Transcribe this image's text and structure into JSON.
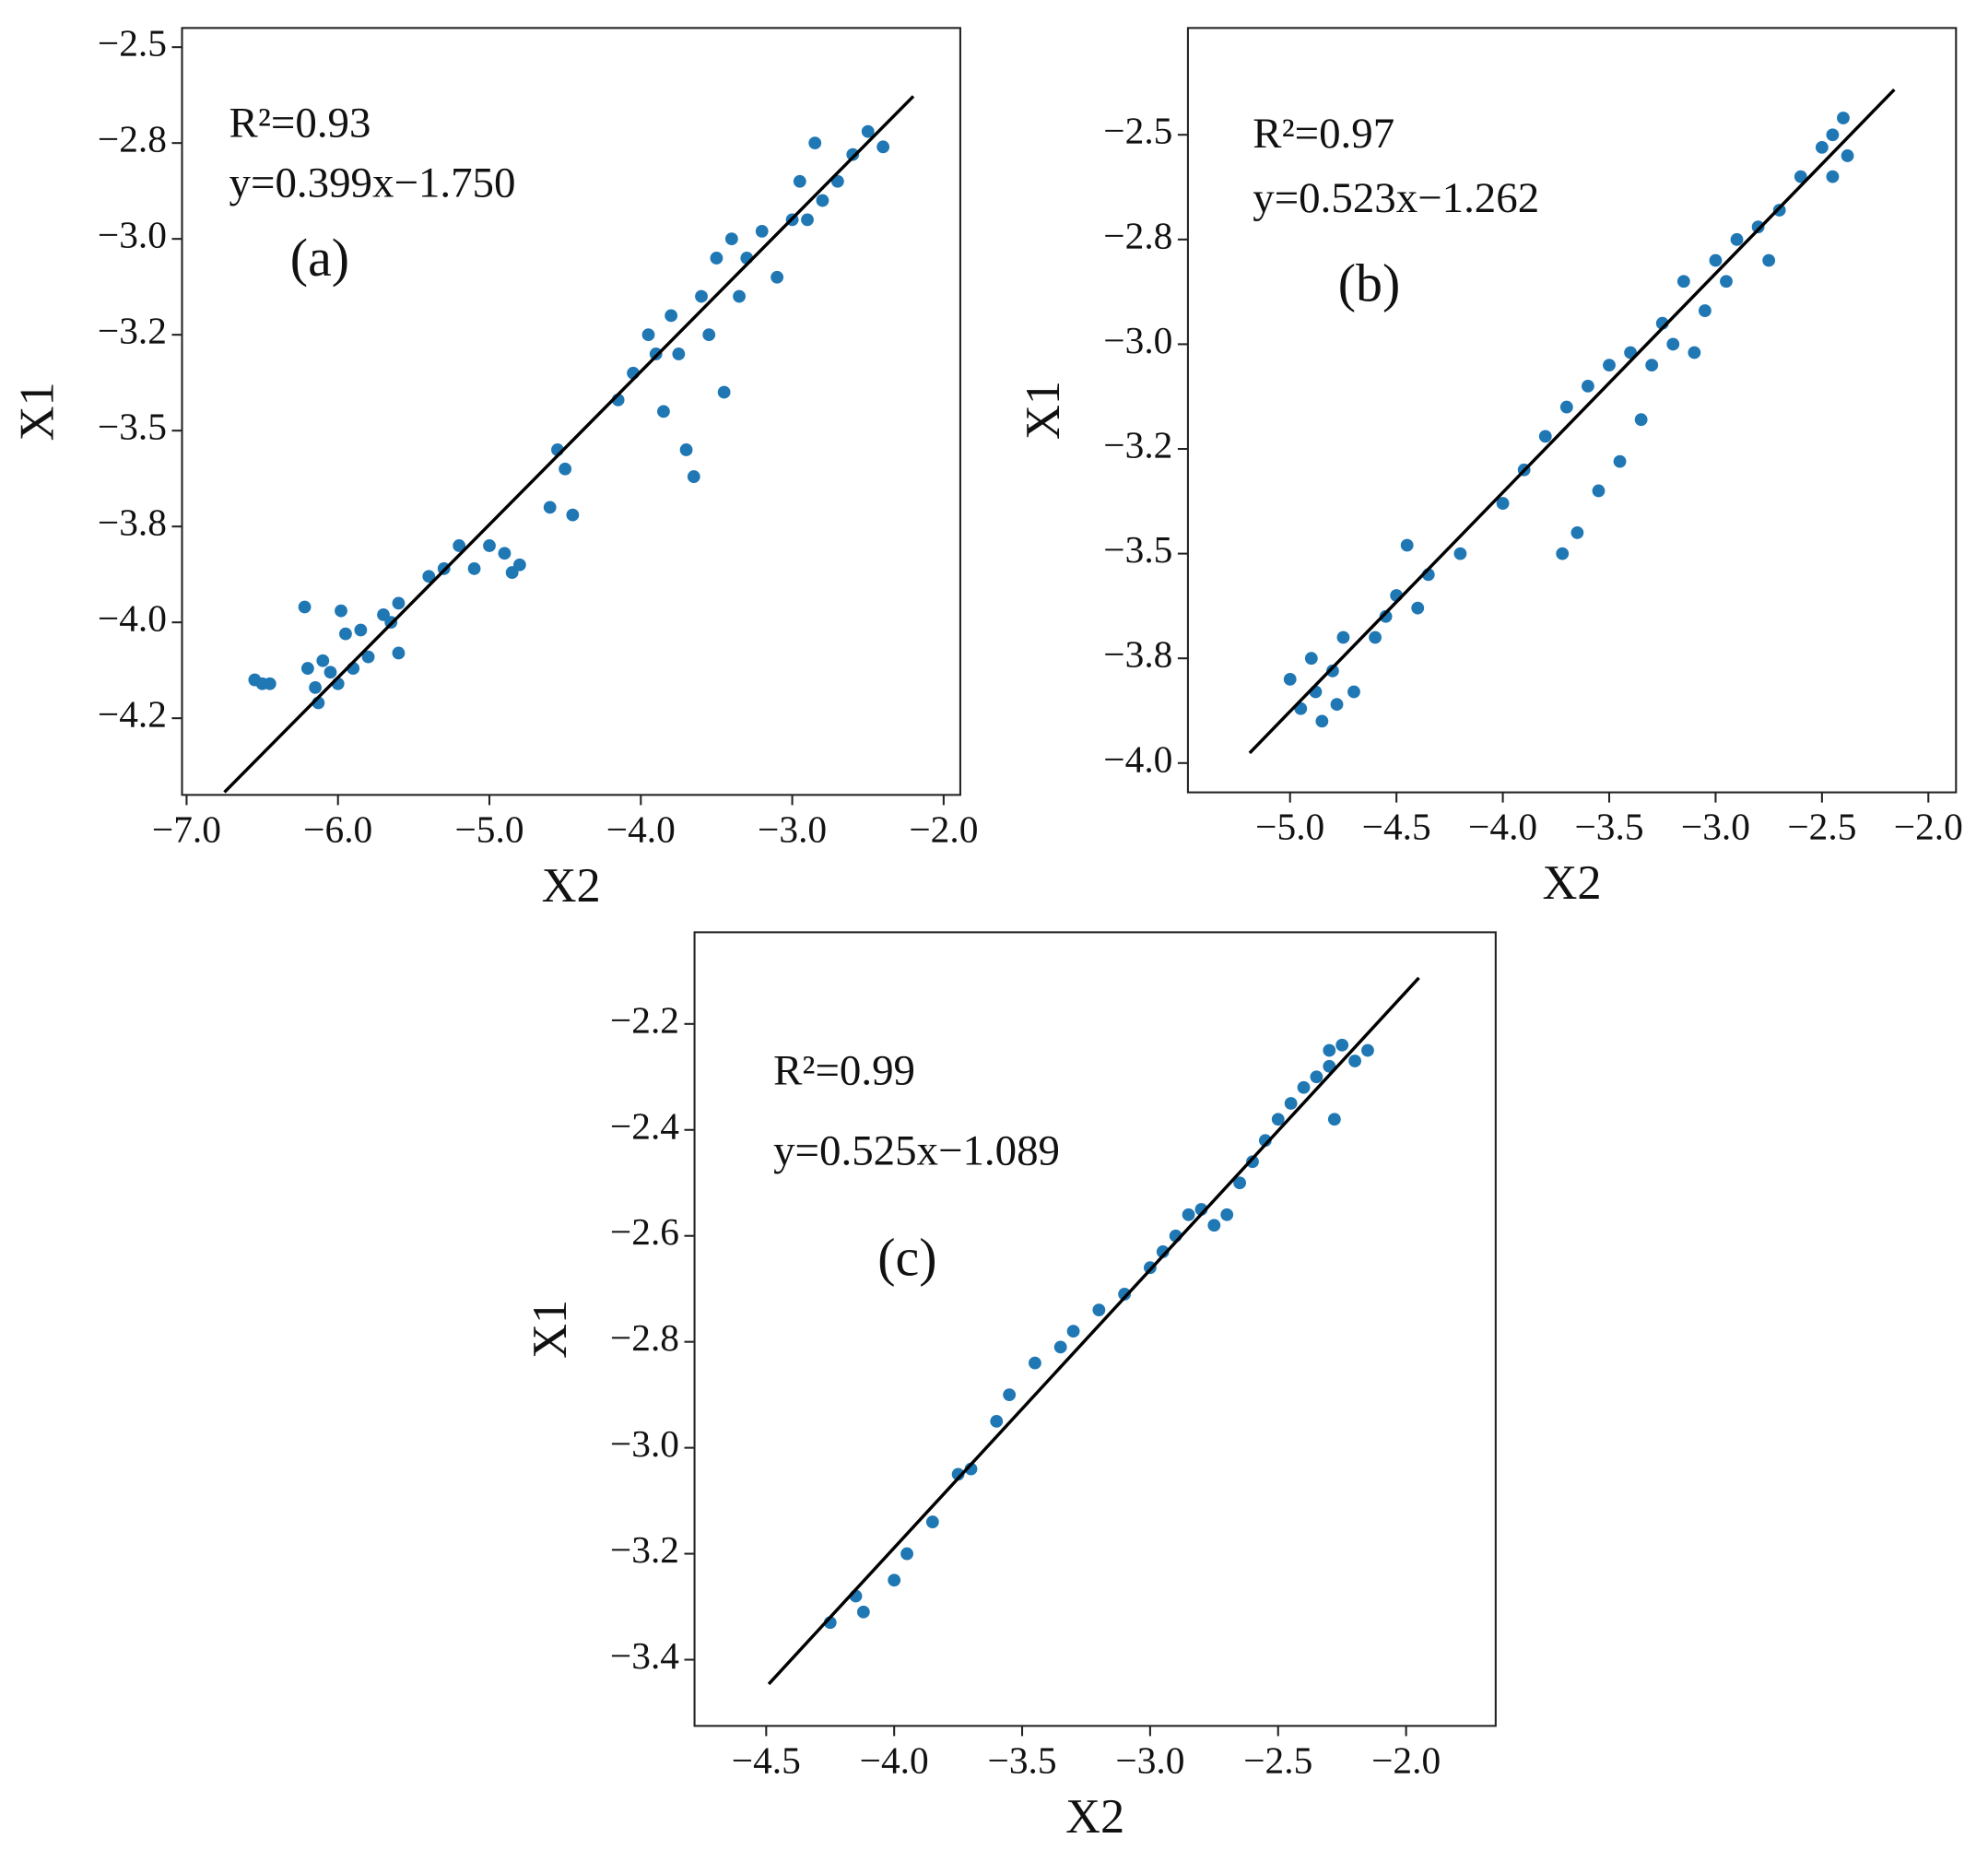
{
  "chart_data": [
    {
      "type": "scatter",
      "color": "#1f77b4",
      "fit_color": "#000000",
      "annotations": [
        "R²=0.93",
        "y=0.399x−1.750",
        "(a)"
      ],
      "x_label": "X2",
      "y_label": "X1",
      "xlim": [
        -7.03,
        -1.89
      ],
      "ylim": [
        -4.45,
        -2.45
      ],
      "xticks": [
        {
          "value": -7,
          "label": "−7.0"
        },
        {
          "value": -6,
          "label": "−6.0"
        },
        {
          "value": -5,
          "label": "−5.0"
        },
        {
          "value": -4,
          "label": "−4.0"
        },
        {
          "value": -3,
          "label": "−3.0"
        },
        {
          "value": -2,
          "label": "−2.0"
        }
      ],
      "yticks": [
        {
          "value": -2.5,
          "label": "−2.5"
        },
        {
          "value": -2.75,
          "label": "−2.8"
        },
        {
          "value": -3.0,
          "label": "−3.0"
        },
        {
          "value": -3.25,
          "label": "−3.2"
        },
        {
          "value": -3.5,
          "label": "−3.5"
        },
        {
          "value": -3.75,
          "label": "−3.8"
        },
        {
          "value": -4.0,
          "label": "−4.0"
        },
        {
          "value": -4.25,
          "label": "−4.2"
        }
      ],
      "x": [
        -6.55,
        -6.5,
        -6.45,
        -6.22,
        -6.2,
        -6.15,
        -6.13,
        -6.1,
        -6.05,
        -6.0,
        -5.98,
        -5.95,
        -5.9,
        -5.85,
        -5.8,
        -5.7,
        -5.65,
        -5.6,
        -5.6,
        -5.4,
        -5.3,
        -5.2,
        -5.1,
        -5.0,
        -4.9,
        -4.85,
        -4.8,
        -4.6,
        -4.55,
        -4.5,
        -4.45,
        -4.15,
        -4.05,
        -3.95,
        -3.9,
        -3.85,
        -3.8,
        -3.75,
        -3.7,
        -3.65,
        -3.6,
        -3.55,
        -3.5,
        -3.45,
        -3.4,
        -3.35,
        -3.3,
        -3.2,
        -3.1,
        -3.0,
        -2.95,
        -2.9,
        -2.85,
        -2.8,
        -2.7,
        -2.6,
        -2.5,
        -2.4
      ],
      "values": [
        -4.15,
        -4.16,
        -4.16,
        -3.96,
        -4.12,
        -4.17,
        -4.21,
        -4.1,
        -4.13,
        -4.16,
        -3.97,
        -4.03,
        -4.12,
        -4.02,
        -4.09,
        -3.98,
        -4.0,
        -3.95,
        -4.08,
        -3.88,
        -3.86,
        -3.8,
        -3.86,
        -3.8,
        -3.82,
        -3.87,
        -3.85,
        -3.7,
        -3.55,
        -3.6,
        -3.72,
        -3.42,
        -3.35,
        -3.25,
        -3.3,
        -3.45,
        -3.2,
        -3.3,
        -3.55,
        -3.62,
        -3.15,
        -3.25,
        -3.05,
        -3.4,
        -3.0,
        -3.15,
        -3.05,
        -2.98,
        -3.1,
        -2.95,
        -2.85,
        -2.95,
        -2.75,
        -2.9,
        -2.85,
        -2.78,
        -2.72,
        -2.76
      ],
      "fit_line": {
        "x": [
          -6.75,
          -2.2
        ],
        "y": [
          -4.443,
          -2.628
        ]
      }
    },
    {
      "type": "scatter",
      "color": "#1f77b4",
      "fit_color": "#000000",
      "annotations": [
        "R²=0.97",
        "y=0.523x−1.262",
        "(b)"
      ],
      "x_label": "X2",
      "y_label": "X1",
      "xlim": [
        -5.48,
        -1.87
      ],
      "ylim": [
        -4.07,
        -2.245
      ],
      "xticks": [
        {
          "value": -5,
          "label": "−5.0"
        },
        {
          "value": -4.5,
          "label": "−4.5"
        },
        {
          "value": -4,
          "label": "−4.0"
        },
        {
          "value": -3.5,
          "label": "−3.5"
        },
        {
          "value": -3,
          "label": "−3.0"
        },
        {
          "value": -2.5,
          "label": "−2.5"
        },
        {
          "value": -2,
          "label": "−2.0"
        }
      ],
      "yticks": [
        {
          "value": -2.5,
          "label": "−2.5"
        },
        {
          "value": -2.75,
          "label": "−2.8"
        },
        {
          "value": -3.0,
          "label": "−3.0"
        },
        {
          "value": -3.25,
          "label": "−3.2"
        },
        {
          "value": -3.5,
          "label": "−3.5"
        },
        {
          "value": -3.75,
          "label": "−3.8"
        },
        {
          "value": -4.0,
          "label": "−4.0"
        }
      ],
      "x": [
        -5.0,
        -4.95,
        -4.9,
        -4.88,
        -4.85,
        -4.8,
        -4.78,
        -4.75,
        -4.7,
        -4.6,
        -4.55,
        -4.5,
        -4.45,
        -4.4,
        -4.35,
        -4.2,
        -4.0,
        -3.9,
        -3.8,
        -3.7,
        -3.72,
        -3.65,
        -3.6,
        -3.55,
        -3.5,
        -3.45,
        -3.4,
        -3.35,
        -3.3,
        -3.25,
        -3.2,
        -3.15,
        -3.1,
        -3.05,
        -3.0,
        -2.95,
        -2.9,
        -2.8,
        -2.75,
        -2.7,
        -2.6,
        -2.5,
        -2.45,
        -2.4,
        -2.38,
        -2.45
      ],
      "values": [
        -3.8,
        -3.87,
        -3.75,
        -3.83,
        -3.9,
        -3.78,
        -3.86,
        -3.7,
        -3.83,
        -3.7,
        -3.65,
        -3.6,
        -3.48,
        -3.63,
        -3.55,
        -3.5,
        -3.38,
        -3.3,
        -3.22,
        -3.15,
        -3.5,
        -3.45,
        -3.1,
        -3.35,
        -3.05,
        -3.28,
        -3.02,
        -3.18,
        -3.05,
        -2.95,
        -3.0,
        -2.85,
        -3.02,
        -2.92,
        -2.8,
        -2.85,
        -2.75,
        -2.72,
        -2.8,
        -2.68,
        -2.6,
        -2.53,
        -2.5,
        -2.46,
        -2.55,
        -2.6
      ],
      "fit_line": {
        "x": [
          -5.19,
          -2.16
        ],
        "y": [
          -3.976,
          -2.392
        ]
      }
    },
    {
      "type": "scatter",
      "color": "#1f77b4",
      "fit_color": "#000000",
      "annotations": [
        "R²=0.99",
        "y=0.525x−1.089",
        "(c)"
      ],
      "x_label": "X2",
      "y_label": "X1",
      "xlim": [
        -4.78,
        -1.65
      ],
      "ylim": [
        -3.525,
        -2.027
      ],
      "xticks": [
        {
          "value": -4.5,
          "label": "−4.5"
        },
        {
          "value": -4,
          "label": "−4.0"
        },
        {
          "value": -3.5,
          "label": "−3.5"
        },
        {
          "value": -3,
          "label": "−3.0"
        },
        {
          "value": -2.5,
          "label": "−2.5"
        },
        {
          "value": -2,
          "label": "−2.0"
        }
      ],
      "yticks": [
        {
          "value": -2.2,
          "label": "−2.2"
        },
        {
          "value": -2.4,
          "label": "−2.4"
        },
        {
          "value": -2.6,
          "label": "−2.6"
        },
        {
          "value": -2.8,
          "label": "−2.8"
        },
        {
          "value": -3.0,
          "label": "−3.0"
        },
        {
          "value": -3.2,
          "label": "−3.2"
        },
        {
          "value": -3.4,
          "label": "−3.4"
        }
      ],
      "x": [
        -4.25,
        -4.15,
        -4.12,
        -4.0,
        -3.95,
        -3.85,
        -3.75,
        -3.7,
        -3.6,
        -3.55,
        -3.45,
        -3.35,
        -3.3,
        -3.2,
        -3.1,
        -3.0,
        -2.95,
        -2.9,
        -2.85,
        -2.8,
        -2.75,
        -2.7,
        -2.65,
        -2.6,
        -2.55,
        -2.5,
        -2.45,
        -2.4,
        -2.35,
        -2.3,
        -2.28,
        -2.25,
        -2.2,
        -2.15,
        -2.3
      ],
      "values": [
        -3.33,
        -3.28,
        -3.31,
        -3.25,
        -3.2,
        -3.14,
        -3.05,
        -3.04,
        -2.95,
        -2.9,
        -2.84,
        -2.81,
        -2.78,
        -2.74,
        -2.71,
        -2.66,
        -2.63,
        -2.6,
        -2.56,
        -2.55,
        -2.58,
        -2.56,
        -2.5,
        -2.46,
        -2.42,
        -2.38,
        -2.35,
        -2.32,
        -2.3,
        -2.28,
        -2.38,
        -2.24,
        -2.27,
        -2.25,
        -2.25
      ],
      "fit_line": {
        "x": [
          -4.49,
          -1.95
        ],
        "y": [
          -3.446,
          -2.113
        ]
      }
    }
  ]
}
